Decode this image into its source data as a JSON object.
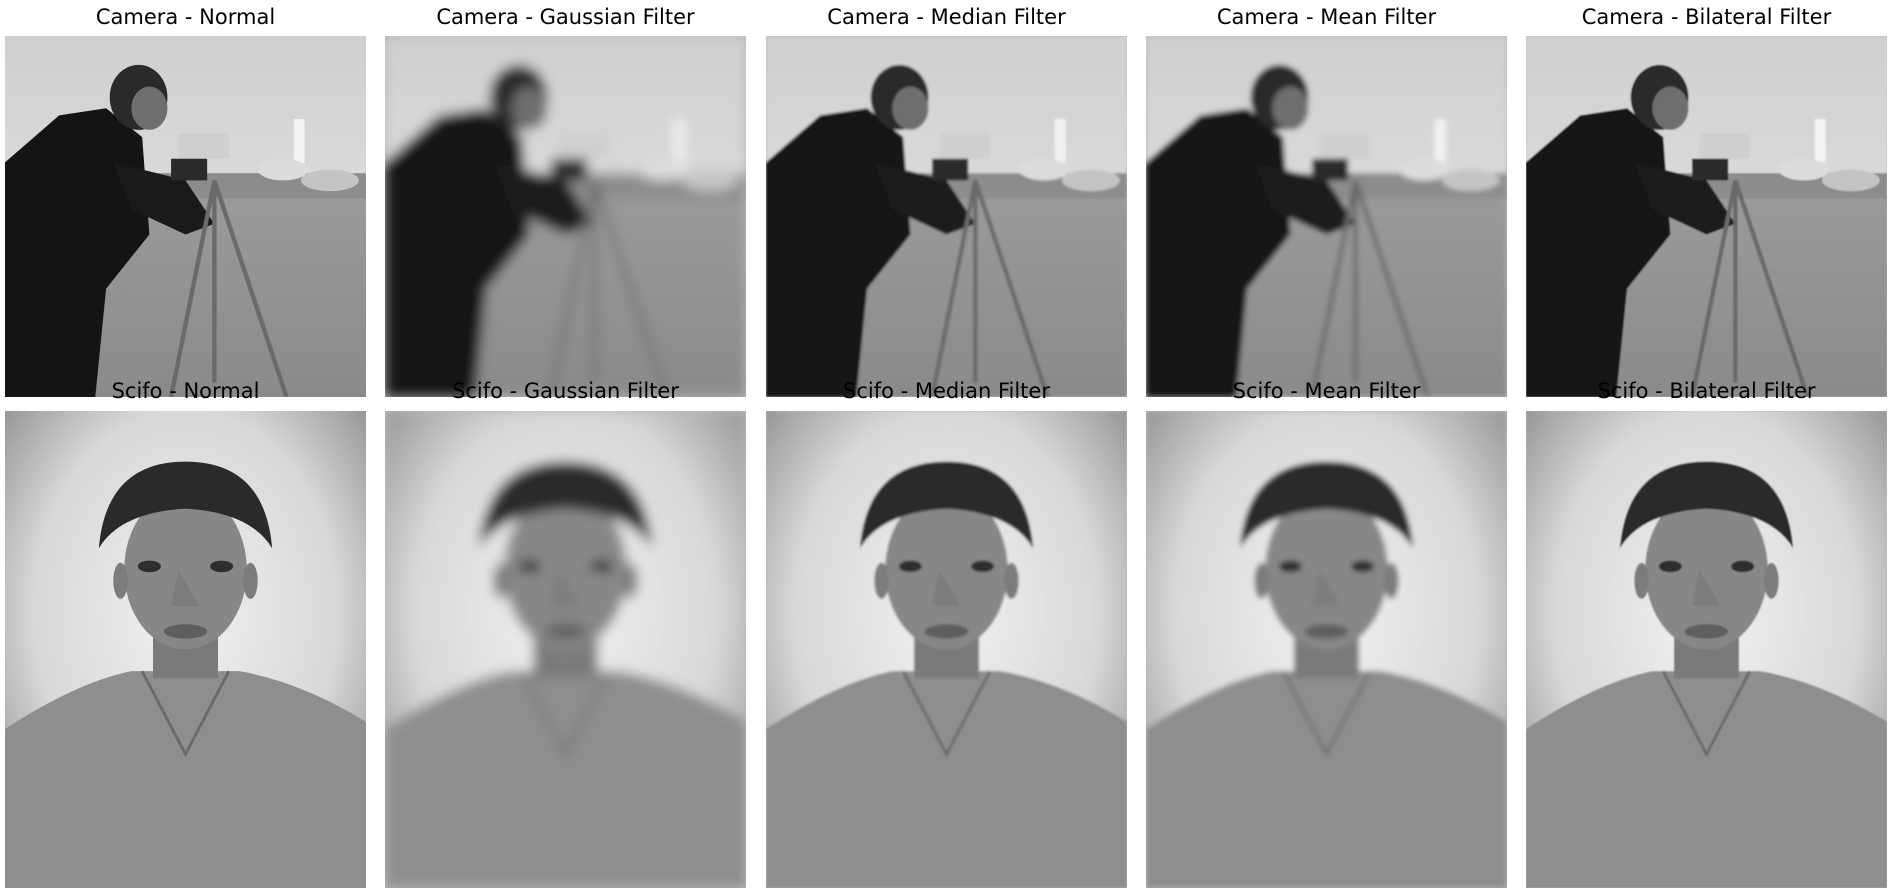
{
  "panels": [
    {
      "title": "Camera - Normal",
      "subject": "camera",
      "filter": "normal"
    },
    {
      "title": "Camera - Gaussian Filter",
      "subject": "camera",
      "filter": "gaussian"
    },
    {
      "title": "Camera - Median Filter",
      "subject": "camera",
      "filter": "median"
    },
    {
      "title": "Camera - Mean Filter",
      "subject": "camera",
      "filter": "mean"
    },
    {
      "title": "Camera - Bilateral Filter",
      "subject": "camera",
      "filter": "bilateral"
    },
    {
      "title": "Scifo - Normal",
      "subject": "portrait",
      "filter": "normal"
    },
    {
      "title": "Scifo - Gaussian Filter",
      "subject": "portrait",
      "filter": "gaussian"
    },
    {
      "title": "Scifo - Median Filter",
      "subject": "portrait",
      "filter": "median"
    },
    {
      "title": "Scifo - Mean Filter",
      "subject": "portrait",
      "filter": "mean"
    },
    {
      "title": "Scifo - Bilateral Filter",
      "subject": "portrait",
      "filter": "bilateral"
    }
  ]
}
